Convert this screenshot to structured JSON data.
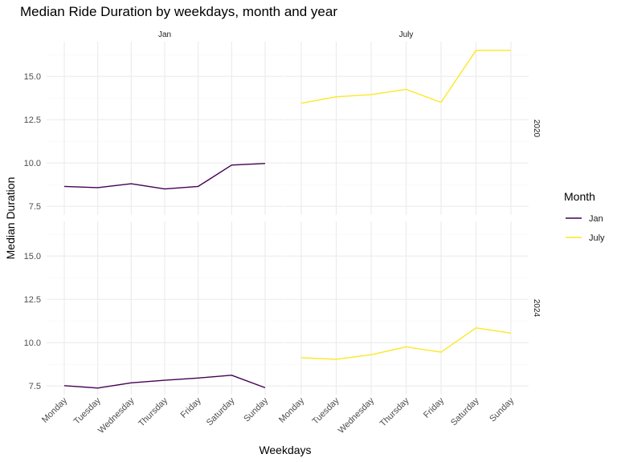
{
  "chart_data": {
    "type": "line",
    "title": "Median Ride Duration by weekdays, month and year",
    "xlabel": "Weekdays",
    "ylabel": "Median Duration",
    "categories": [
      "Monday",
      "Tuesday",
      "Wednesday",
      "Thursday",
      "Friday",
      "Saturday",
      "Sunday"
    ],
    "ylim": [
      7.0,
      17.0
    ],
    "yticks": [
      "7.5",
      "10.0",
      "12.5",
      "15.0"
    ],
    "ytick_values": [
      7.5,
      10.0,
      12.5,
      15.0
    ],
    "columns": [
      "Jan",
      "July"
    ],
    "rows": [
      "2020",
      "2024"
    ],
    "grid": true,
    "legend": {
      "title": "Month",
      "position": "right",
      "entries": [
        {
          "name": "Jan",
          "color": "#440154"
        },
        {
          "name": "July",
          "color": "#FDE725"
        }
      ]
    },
    "panels": [
      {
        "row": "2020",
        "column": "Jan",
        "series": "Jan",
        "values": [
          8.65,
          8.58,
          8.8,
          8.5,
          8.65,
          9.88,
          9.97
        ]
      },
      {
        "row": "2020",
        "column": "July",
        "series": "July",
        "values": [
          13.45,
          13.82,
          13.95,
          14.25,
          13.5,
          16.5,
          16.5
        ]
      },
      {
        "row": "2024",
        "column": "Jan",
        "series": "Jan",
        "values": [
          7.52,
          7.38,
          7.68,
          7.83,
          7.96,
          8.12,
          7.4
        ]
      },
      {
        "row": "2024",
        "column": "July",
        "series": "July",
        "values": [
          9.13,
          9.04,
          9.3,
          9.76,
          9.45,
          10.85,
          10.55
        ]
      }
    ]
  }
}
